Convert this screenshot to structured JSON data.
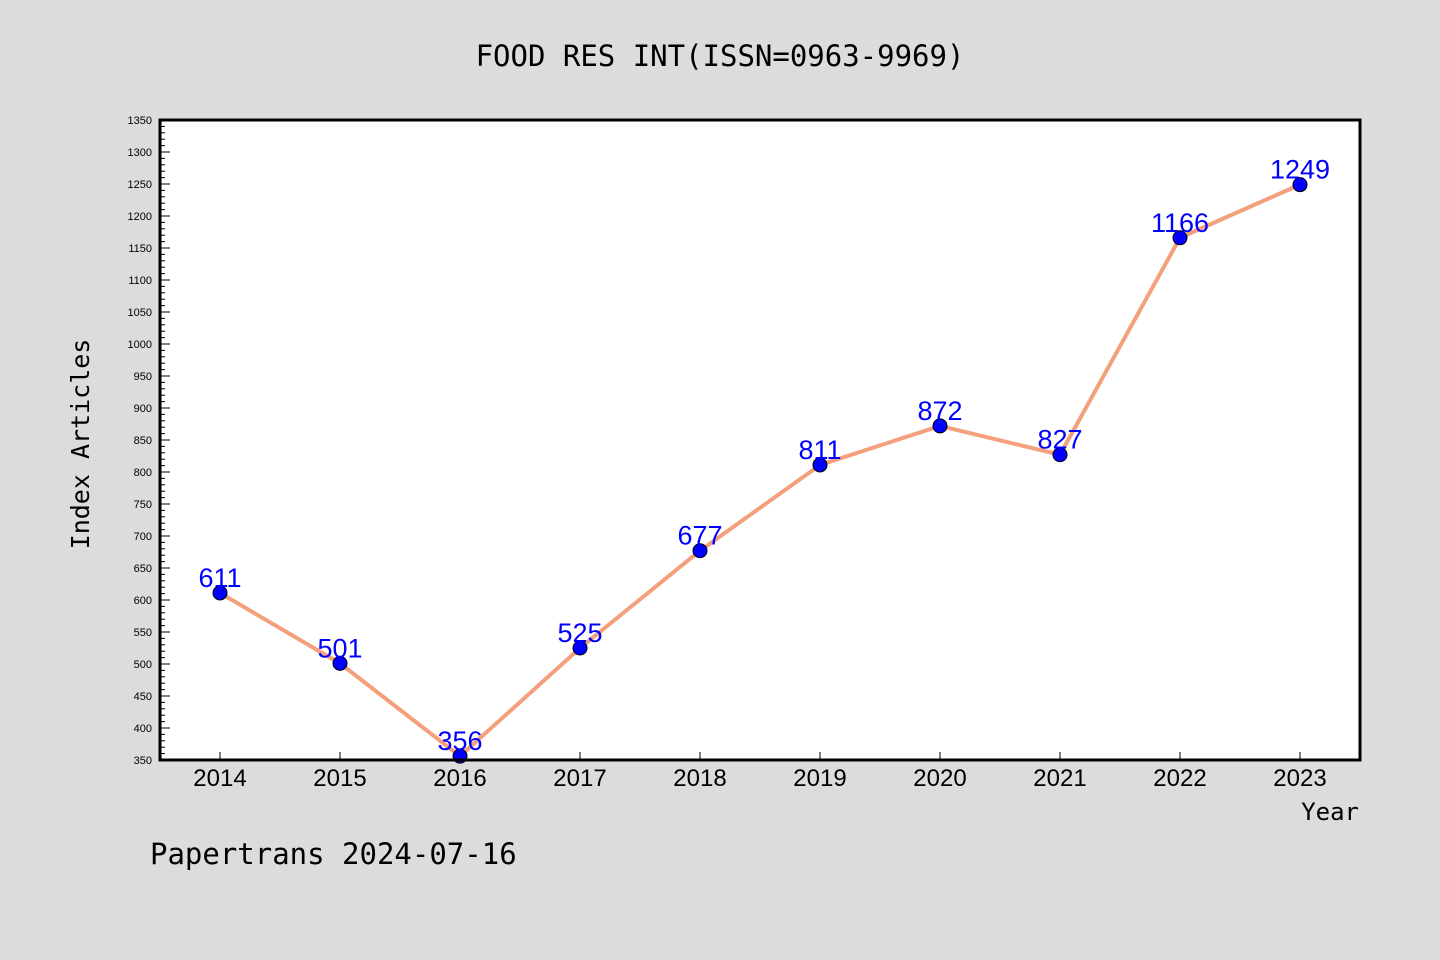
{
  "chart_data": {
    "type": "line",
    "title": "FOOD RES INT(ISSN=0963-9969)",
    "xlabel": "Year",
    "ylabel": "Index Articles",
    "footer": "Papertrans 2024-07-16",
    "categories": [
      "2014",
      "2015",
      "2016",
      "2017",
      "2018",
      "2019",
      "2020",
      "2021",
      "2022",
      "2023"
    ],
    "values": [
      611,
      501,
      356,
      525,
      677,
      811,
      872,
      827,
      1166,
      1249
    ],
    "ylim": [
      350,
      1350
    ],
    "yticks": [
      "350",
      "400",
      "450",
      "500",
      "550",
      "600",
      "650",
      "700",
      "750",
      "800",
      "850",
      "900",
      "950",
      "1000",
      "1050",
      "1100",
      "1150",
      "1200",
      "1250",
      "1300",
      "1350"
    ],
    "grid": false,
    "line_color": "#f4a07c",
    "marker_color": "#0000ff",
    "label_color": "#0000ff"
  }
}
